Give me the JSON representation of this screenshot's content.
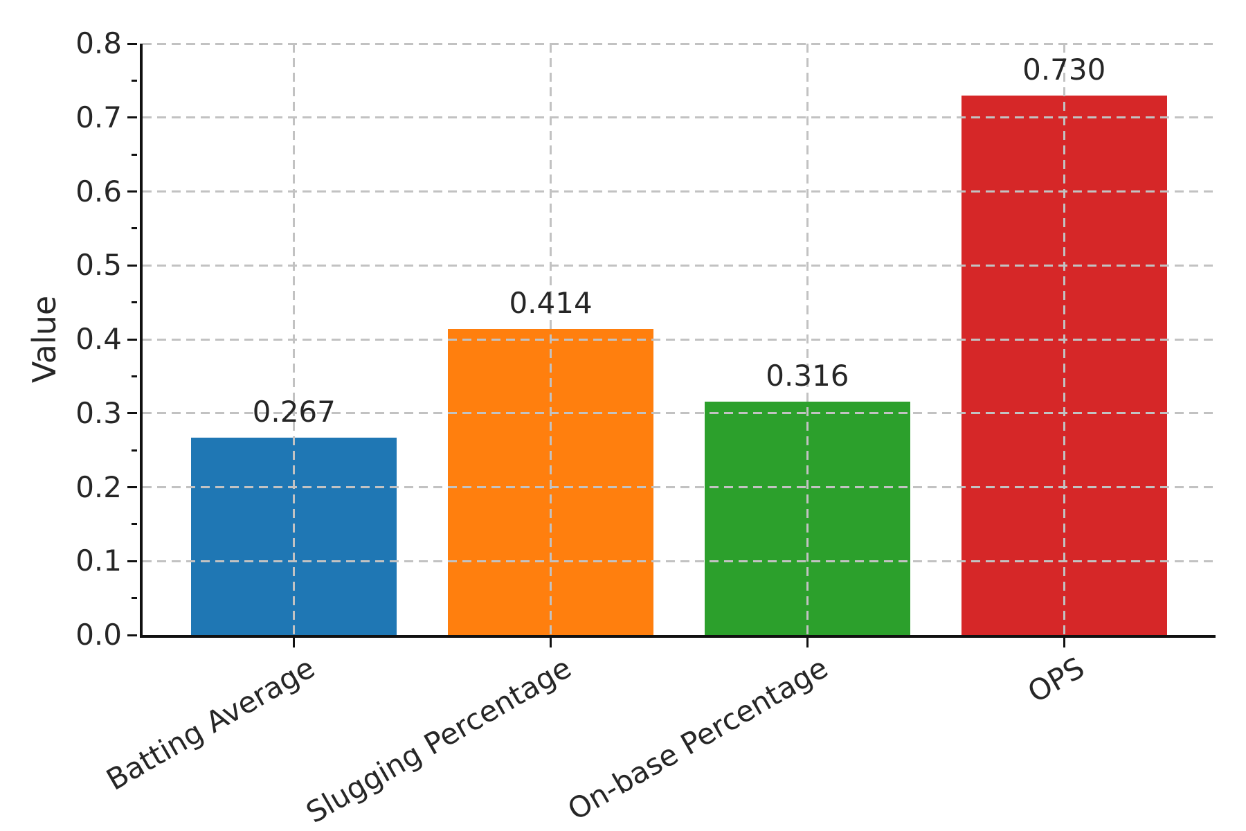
{
  "figure": {
    "background": "#ffffff",
    "text_color": "#262626",
    "grid_color": "#c2c2c2",
    "spine_color": "#111111"
  },
  "chart_data": {
    "type": "bar",
    "title": "",
    "categories": [
      "Batting Average",
      "Slugging Percentage",
      "On-base Percentage",
      "OPS"
    ],
    "values": [
      0.267,
      0.414,
      0.316,
      0.73
    ],
    "value_labels": [
      "0.267",
      "0.414",
      "0.316",
      "0.730"
    ],
    "bar_colors": [
      "#1f77b4",
      "#ff7f0e",
      "#2ca02c",
      "#d62728"
    ],
    "xlabel": "",
    "ylabel": "Value",
    "ylim": [
      0.0,
      0.8
    ],
    "ytick_step": 0.1,
    "ytick_labels": [
      "0.0",
      "0.1",
      "0.2",
      "0.3",
      "0.4",
      "0.5",
      "0.6",
      "0.7",
      "0.8"
    ],
    "minor_ytick_step": 0.05,
    "grid": "dashed gridlines on both axes, drawn over bars",
    "legend_position": "none",
    "bar_width_fraction": 0.8,
    "x_tick_label_rotation_deg": 30
  }
}
